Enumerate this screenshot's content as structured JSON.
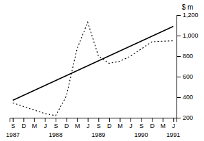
{
  "chart_data": {
    "type": "line",
    "ylabel": "$ m",
    "xlim": [
      -0.3,
      15.3
    ],
    "xticks": [
      {
        "value": 0,
        "label": "S"
      },
      {
        "value": 1,
        "label": "D"
      },
      {
        "value": 2,
        "label": "M"
      },
      {
        "value": 3,
        "label": "J"
      },
      {
        "value": 4,
        "label": "S"
      },
      {
        "value": 5,
        "label": "D"
      },
      {
        "value": 6,
        "label": "M"
      },
      {
        "value": 7,
        "label": "J"
      },
      {
        "value": 8,
        "label": "S"
      },
      {
        "value": 9,
        "label": "D"
      },
      {
        "value": 10,
        "label": "M"
      },
      {
        "value": 11,
        "label": "J"
      },
      {
        "value": 12,
        "label": "S"
      },
      {
        "value": 13,
        "label": "D"
      },
      {
        "value": 14,
        "label": "M"
      },
      {
        "value": 15,
        "label": "J"
      }
    ],
    "ylim": [
      200,
      1200
    ],
    "yticks": [
      200,
      400,
      600,
      800,
      {
        "value": 1000,
        "label": "1,000"
      },
      {
        "value": 1200,
        "label": "1,200"
      }
    ],
    "grid": false,
    "series": [
      {
        "color": "#000000",
        "line_style": "solid",
        "x": [
          0,
          15
        ],
        "values": [
          370,
          1090
        ]
      },
      {
        "color": "#000000",
        "line_style": "dotted",
        "x": [
          0,
          1,
          2,
          3,
          4,
          5,
          6,
          7,
          8,
          9,
          10,
          11,
          12,
          13,
          14,
          15
        ],
        "values": [
          345,
          310,
          275,
          240,
          220,
          410,
          870,
          1130,
          800,
          730,
          750,
          800,
          870,
          940,
          945,
          950
        ]
      }
    ],
    "annotations": [
      {
        "text": "1987",
        "x": 0
      },
      {
        "text": "1988",
        "x": 4
      },
      {
        "text": "1989",
        "x": 8
      },
      {
        "text": "1990",
        "x": 12
      },
      {
        "text": "1991",
        "x": 15
      }
    ]
  }
}
